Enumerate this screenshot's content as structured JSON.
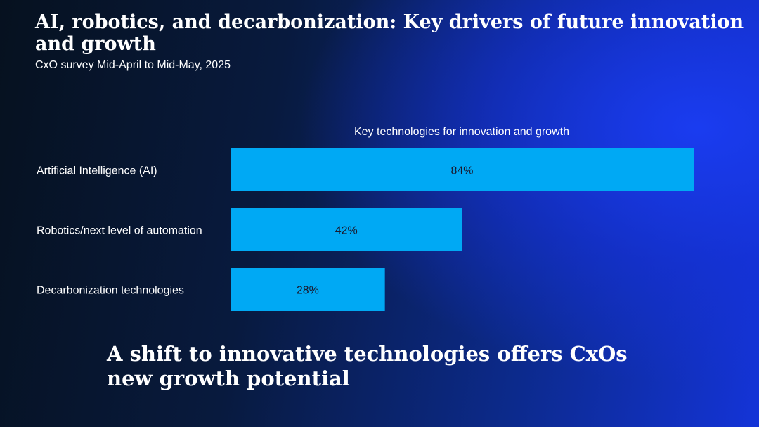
{
  "header": {
    "title": "AI, robotics, and decarbonization: Key drivers of future innovation and growth",
    "subtitle": "CxO survey Mid-April to Mid-May, 2025"
  },
  "chart_data": {
    "type": "bar",
    "orientation": "horizontal",
    "title": "Key technologies for innovation and growth",
    "categories": [
      "Artificial Intelligence (AI)",
      "Robotics/next level of automation",
      "Decarbonization technologies"
    ],
    "values": [
      84,
      42,
      28
    ],
    "value_labels": [
      "84%",
      "42%",
      "28%"
    ],
    "unit": "%",
    "xlim": [
      0,
      100
    ],
    "bar_color": "#00a9f4",
    "label_color": "#1a1a2e",
    "grid": false
  },
  "footer": {
    "tagline": "A shift to innovative technologies offers CxOs new growth potential"
  }
}
